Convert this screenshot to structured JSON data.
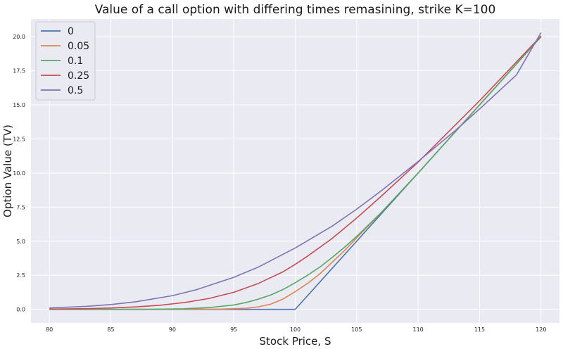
{
  "chart_data": {
    "type": "line",
    "title": "Value of a call option with differing times remasining, strike K=100",
    "xlabel": "Stock Price, S",
    "ylabel": "Option Value (TV)",
    "xlim": [
      78.5,
      121.5
    ],
    "ylim": [
      -1.0,
      21.3
    ],
    "xticks": [
      80,
      85,
      90,
      95,
      100,
      105,
      110,
      115,
      120
    ],
    "xtick_labels": [
      "80",
      "85",
      "90",
      "95",
      "100",
      "105",
      "110",
      "115",
      "120"
    ],
    "yticks": [
      0,
      2.5,
      5,
      7.5,
      10,
      12.5,
      15,
      17.5,
      20
    ],
    "ytick_labels": [
      "0.0",
      "2.5",
      "5.0",
      "7.5",
      "10.0",
      "12.5",
      "15.0",
      "17.5",
      "20.0"
    ],
    "grid": true,
    "legend_position": "top-left",
    "background_color": "#eaeaf2",
    "grid_color": "#ffffff",
    "series": [
      {
        "name": "0",
        "color": "#4c72b0",
        "x": [
          80,
          100,
          120
        ],
        "y": [
          0,
          0,
          20
        ]
      },
      {
        "name": "0.05",
        "color": "#dd8452",
        "x": [
          80,
          90,
          94,
          96,
          97,
          98,
          99,
          100,
          101,
          102,
          103,
          104,
          105,
          107,
          110,
          115,
          120
        ],
        "y": [
          0,
          0,
          0.02,
          0.08,
          0.18,
          0.38,
          0.75,
          1.3,
          1.9,
          2.6,
          3.45,
          4.3,
          5.25,
          7.1,
          10.0,
          15.0,
          20.0
        ]
      },
      {
        "name": "0.1",
        "color": "#55a868",
        "x": [
          80,
          88,
          91,
          93,
          95,
          96,
          97,
          98,
          99,
          100,
          101,
          102,
          103,
          104,
          105,
          107,
          110,
          115,
          120
        ],
        "y": [
          0,
          0,
          0.04,
          0.13,
          0.32,
          0.5,
          0.75,
          1.05,
          1.45,
          1.95,
          2.5,
          3.1,
          3.8,
          4.55,
          5.35,
          7.1,
          10.0,
          15.0,
          20.0
        ]
      },
      {
        "name": "0.25",
        "color": "#c44e52",
        "x": [
          80,
          83,
          85,
          87,
          89,
          91,
          93,
          95,
          97,
          99,
          100,
          101,
          103,
          105,
          107,
          110,
          115,
          120
        ],
        "y": [
          0.02,
          0.05,
          0.1,
          0.18,
          0.3,
          0.5,
          0.8,
          1.25,
          1.9,
          2.75,
          3.3,
          3.9,
          5.2,
          6.7,
          8.3,
          10.8,
          15.3,
          20.05
        ]
      },
      {
        "name": "0.5",
        "color": "#8172b3",
        "x": [
          80,
          83,
          85,
          87,
          90,
          92,
          95,
          97,
          100,
          103,
          105,
          107,
          110,
          113,
          115,
          118,
          120
        ],
        "y": [
          0.1,
          0.22,
          0.35,
          0.55,
          1.0,
          1.45,
          2.35,
          3.1,
          4.5,
          6.1,
          7.35,
          8.7,
          10.85,
          13.1,
          14.7,
          17.2,
          20.3
        ]
      }
    ]
  }
}
